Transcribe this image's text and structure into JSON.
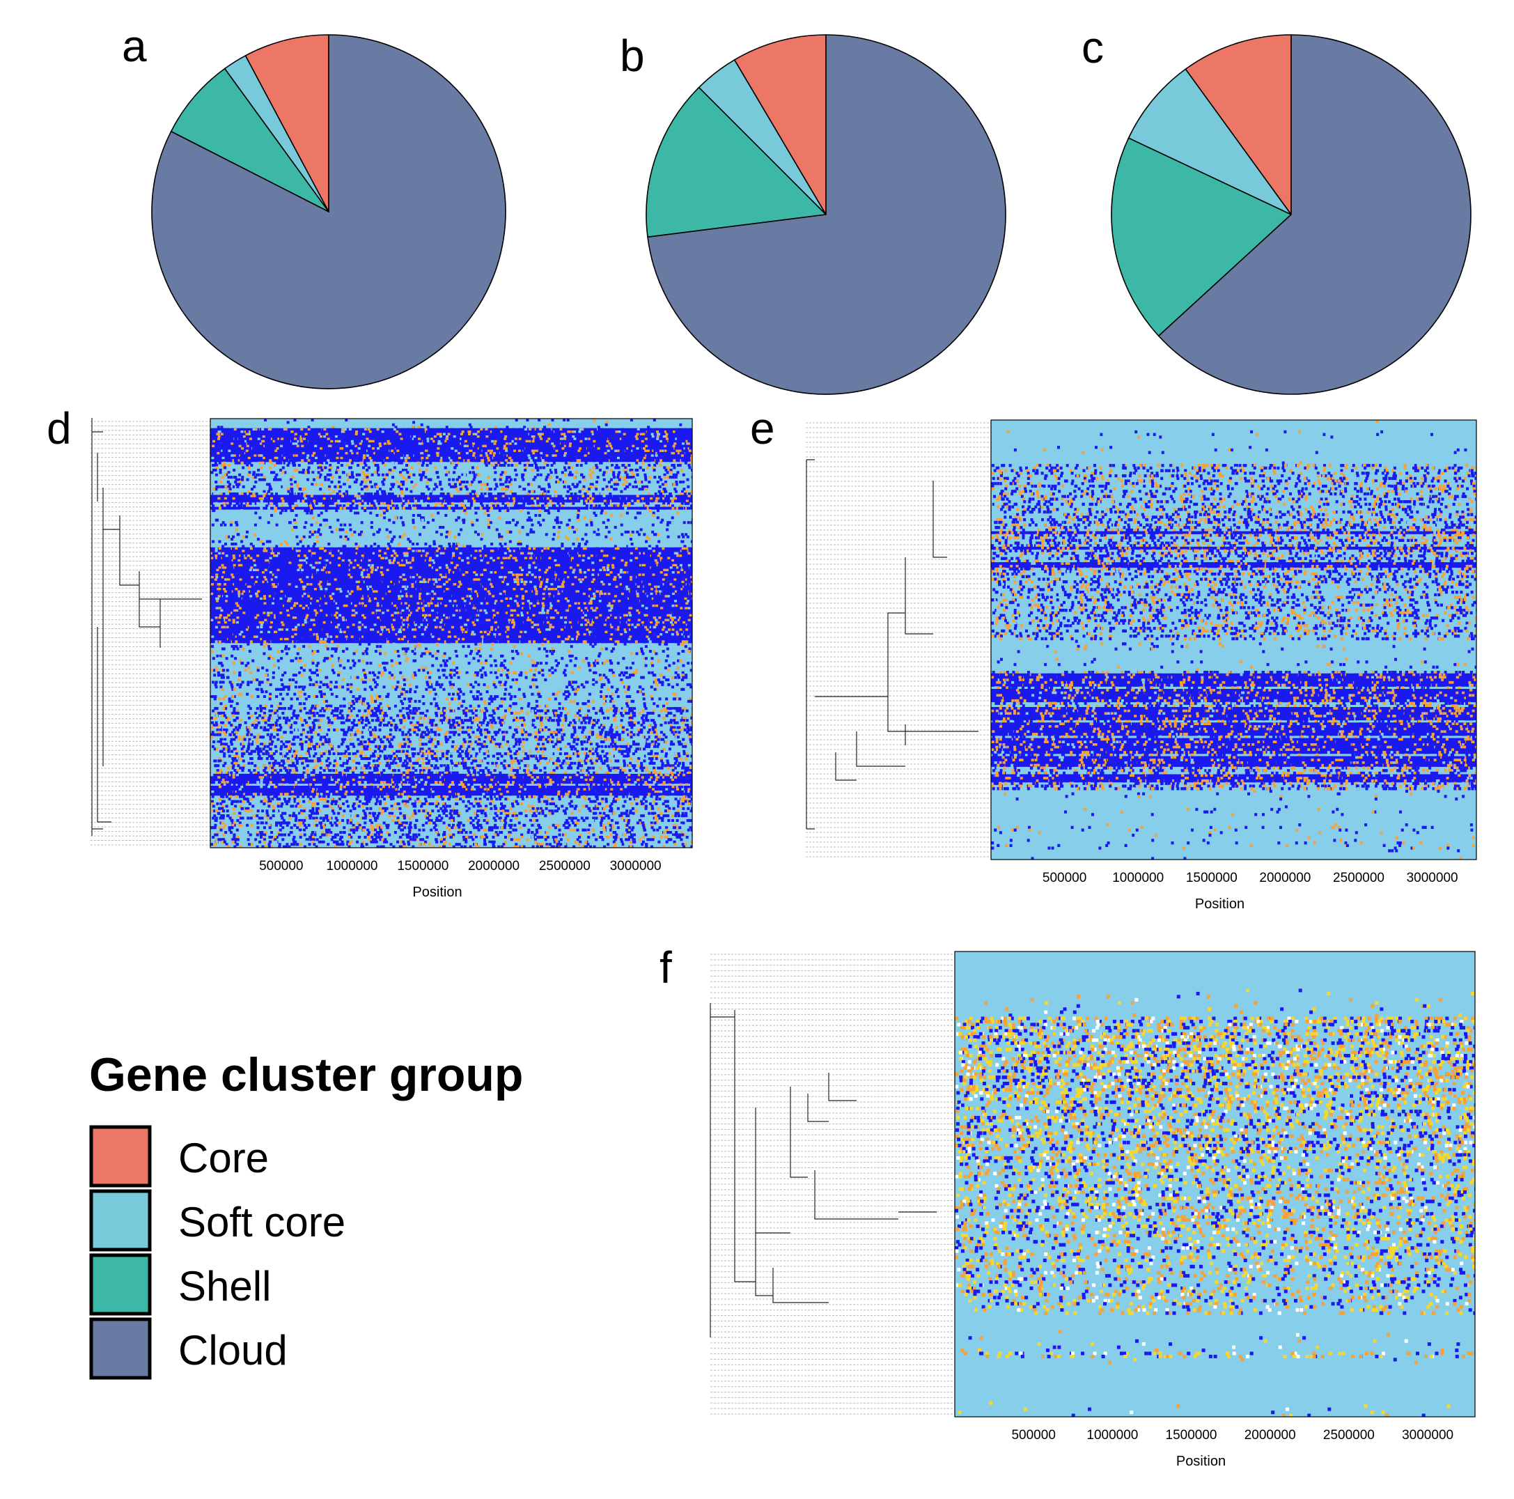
{
  "panel_letters": [
    "a",
    "b",
    "c",
    "d",
    "e",
    "f"
  ],
  "legend": {
    "title": "Gene cluster group",
    "items": [
      {
        "label": "Core",
        "color": "#EC7766"
      },
      {
        "label": "Soft core",
        "color": "#78CADB"
      },
      {
        "label": "Shell",
        "color": "#3DB8A7"
      },
      {
        "label": "Cloud",
        "color": "#6A7BA3"
      }
    ]
  },
  "heatmap_colors": {
    "background": "#87CEEB",
    "blue": "#1A1AF0",
    "orange": "#F5A23A",
    "yellow": "#F7D72E",
    "white": "#FFFFFF",
    "grey_guide": "#BBBBBB"
  },
  "chart_data": [
    {
      "type": "pie",
      "panel": "a",
      "categories": [
        "Core",
        "Soft core",
        "Shell",
        "Cloud"
      ],
      "values": [
        0.078,
        0.022,
        0.075,
        0.825
      ],
      "start": "12 o'clock",
      "direction": "counterclockwise"
    },
    {
      "type": "pie",
      "panel": "b",
      "categories": [
        "Core",
        "Soft core",
        "Shell",
        "Cloud"
      ],
      "values": [
        0.085,
        0.04,
        0.145,
        0.73
      ],
      "start": "12 o'clock",
      "direction": "counterclockwise"
    },
    {
      "type": "pie",
      "panel": "c",
      "categories": [
        "Core",
        "Soft core",
        "Shell",
        "Cloud"
      ],
      "values": [
        0.1,
        0.08,
        0.188,
        0.632
      ],
      "start": "12 o'clock",
      "direction": "counterclockwise"
    },
    {
      "type": "heatmap",
      "panel": "d",
      "xlabel": "Position",
      "xticks": [
        500000,
        1000000,
        1500000,
        2000000,
        2500000,
        3000000
      ],
      "xticklabels": [
        "500000",
        "1000000",
        "1500000",
        "2000000",
        "2500000",
        "3000000"
      ],
      "xlim": [
        0,
        3400000
      ],
      "colors": [
        "blue",
        "orange",
        "background"
      ]
    },
    {
      "type": "heatmap",
      "panel": "e",
      "xlabel": "Position",
      "xticks": [
        500000,
        1000000,
        1500000,
        2000000,
        2500000,
        3000000
      ],
      "xticklabels": [
        "500000",
        "1000000",
        "1500000",
        "2000000",
        "2500000",
        "3000000"
      ],
      "xlim": [
        0,
        3300000
      ],
      "colors": [
        "blue",
        "orange",
        "background"
      ]
    },
    {
      "type": "heatmap",
      "panel": "f",
      "xlabel": "Position",
      "xticks": [
        500000,
        1000000,
        1500000,
        2000000,
        2500000,
        3000000
      ],
      "xticklabels": [
        "500000",
        "1000000",
        "1500000",
        "2000000",
        "2500000",
        "3000000"
      ],
      "xlim": [
        0,
        3300000
      ],
      "colors": [
        "blue",
        "orange",
        "yellow",
        "white",
        "background"
      ]
    }
  ]
}
